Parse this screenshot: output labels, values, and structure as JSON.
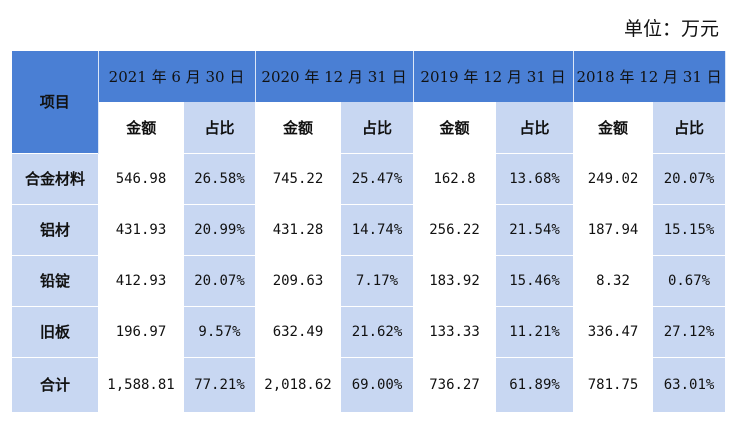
{
  "unit_label": "单位：万元",
  "header": {
    "item_label": "项目",
    "periods": [
      "2021 年 6 月 30 日",
      "2020 年 12 月 31 日",
      "2019 年 12 月 31 日",
      "2018 年 12 月 31 日"
    ],
    "amount_label": "金额",
    "ratio_label": "占比"
  },
  "rows": [
    {
      "label": "合金材料",
      "cells": [
        "546.98",
        "26.58%",
        "745.22",
        "25.47%",
        "162.8",
        "13.68%",
        "249.02",
        "20.07%"
      ]
    },
    {
      "label": "铝材",
      "cells": [
        "431.93",
        "20.99%",
        "431.28",
        "14.74%",
        "256.22",
        "21.54%",
        "187.94",
        "15.15%"
      ]
    },
    {
      "label": "铅锭",
      "cells": [
        "412.93",
        "20.07%",
        "209.63",
        "7.17%",
        "183.92",
        "15.46%",
        "8.32",
        "0.67%"
      ]
    },
    {
      "label": "旧板",
      "cells": [
        "196.97",
        "9.57%",
        "632.49",
        "21.62%",
        "133.33",
        "11.21%",
        "336.47",
        "27.12%"
      ]
    },
    {
      "label": "合计",
      "cells": [
        "1,588.81",
        "77.21%",
        "2,018.62",
        "69.00%",
        "736.27",
        "61.89%",
        "781.75",
        "63.01%"
      ]
    }
  ],
  "colors": {
    "header_blue": "#4a7fd4",
    "light_blue": "#c8d7f2",
    "white": "#ffffff"
  }
}
